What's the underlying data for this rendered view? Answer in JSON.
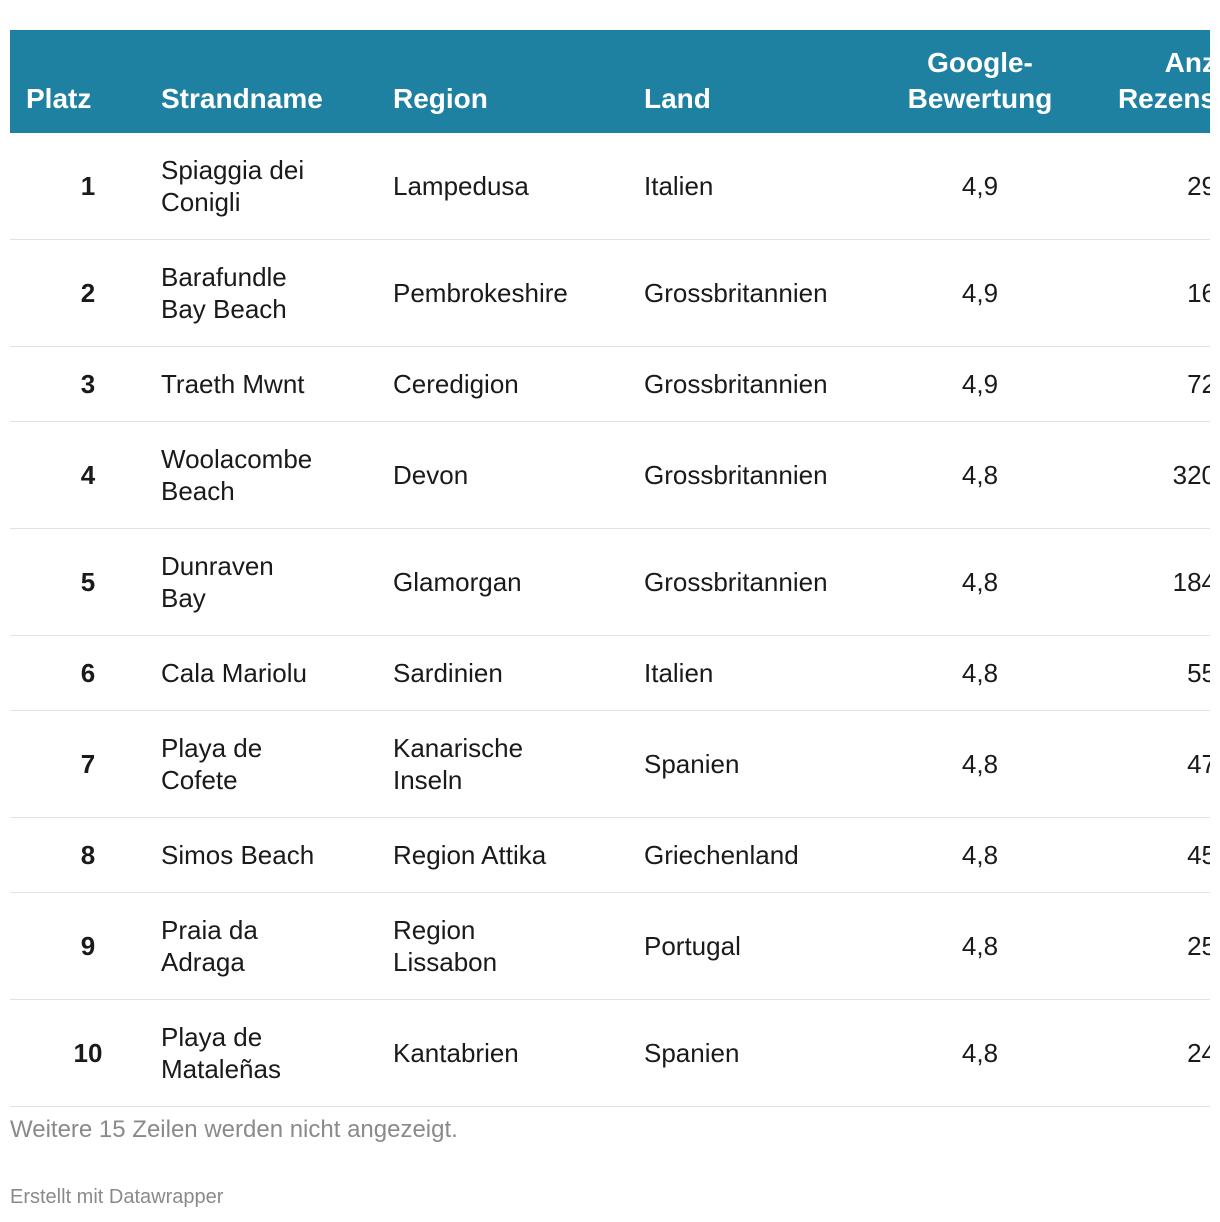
{
  "table": {
    "header": [
      "Platz",
      "Strandname",
      "Region",
      "Land",
      "Google-\nBewertung",
      "Anz\nRezens"
    ],
    "rows": [
      [
        "1",
        "Spiaggia dei\nConigli",
        "Lampedusa",
        "Italien",
        "4,9",
        "29"
      ],
      [
        "2",
        "Barafundle\nBay Beach",
        "Pembrokeshire",
        "Grossbritannien",
        "4,9",
        "16"
      ],
      [
        "3",
        "Traeth Mwnt",
        "Ceredigion",
        "Grossbritannien",
        "4,9",
        "72"
      ],
      [
        "4",
        "Woolacombe\nBeach",
        "Devon",
        "Grossbritannien",
        "4,8",
        "320"
      ],
      [
        "5",
        "Dunraven\nBay",
        "Glamorgan",
        "Grossbritannien",
        "4,8",
        "184"
      ],
      [
        "6",
        "Cala Mariolu",
        "Sardinien",
        "Italien",
        "4,8",
        "55"
      ],
      [
        "7",
        "Playa de\nCofete",
        "Kanarische\nInseln",
        "Spanien",
        "4,8",
        "47"
      ],
      [
        "8",
        "Simos Beach",
        "Region Attika",
        "Griechenland",
        "4,8",
        "45"
      ],
      [
        "9",
        "Praia da\nAdraga",
        "Region\nLissabon",
        "Portugal",
        "4,8",
        "25"
      ],
      [
        "10",
        "Playa de\nMataleñas",
        "Kantabrien",
        "Spanien",
        "4,8",
        "24"
      ]
    ]
  },
  "notes": "Weitere 15 Zeilen werden nicht angezeigt.",
  "footer": "Erstellt mit Datawrapper"
}
